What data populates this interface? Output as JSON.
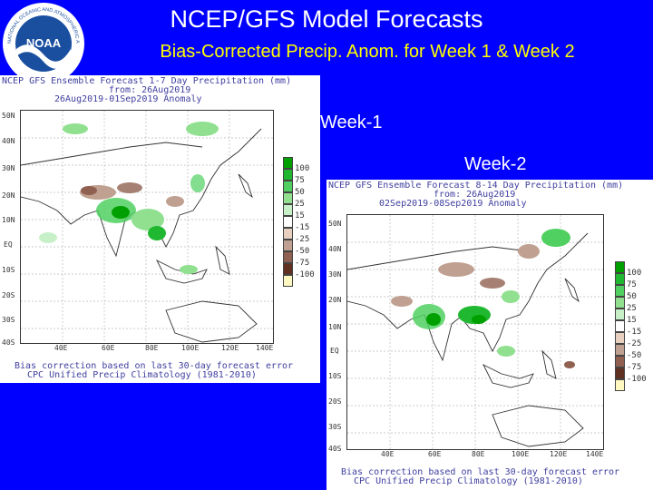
{
  "title": "NCEP/GFS Model Forecasts",
  "subtitle": "Bias-Corrected Precip. Anom. for Week 1 & Week 2",
  "logo_text": "NATIONAL OCEANIC AND ATMOSPHERIC ADMINISTRATION",
  "logo_abbrev": "NOAA",
  "week1_label": "Week-1",
  "week2_label": "Week-2",
  "panel1": {
    "header_1": "NCEP GFS Ensemble Forecast 1-7 Day Precipitation (mm)",
    "header_2": "from: 26Aug2019",
    "header_3": "26Aug2019-01Sep2019 Anomaly",
    "footer_1": "Bias correction based on last 30-day forecast error",
    "footer_2": "CPC Unified Precip Climatology (1981-2010)",
    "lat_labels": [
      "50N",
      "40N",
      "30N",
      "20N",
      "10N",
      "EQ",
      "10S",
      "20S",
      "30S",
      "40S"
    ],
    "lon_labels": [
      "40E",
      "60E",
      "80E",
      "100E",
      "120E",
      "140E"
    ]
  },
  "panel2": {
    "header_1": "NCEP GFS Ensemble Forecast 8-14 Day Precipitation (mm)",
    "header_2": "from: 26Aug2019",
    "header_3": "02Sep2019-08Sep2019 Anomaly",
    "footer_1": "Bias correction based on last 30-day forecast error",
    "footer_2": "CPC Unified Precip Climatology (1981-2010)",
    "lat_labels": [
      "50N",
      "40N",
      "30N",
      "20N",
      "10N",
      "EQ",
      "10S",
      "20S",
      "30S",
      "40S"
    ],
    "lon_labels": [
      "40E",
      "60E",
      "80E",
      "100E",
      "120E",
      "140E"
    ]
  },
  "legend": {
    "labels": [
      "100",
      "75",
      "50",
      "25",
      "15",
      "-15",
      "-25",
      "-50",
      "-75",
      "-100"
    ],
    "colors": [
      "#00a000",
      "#20b830",
      "#50d060",
      "#90e090",
      "#c8f0c8",
      "#ffffff",
      "#e8d0c0",
      "#c0a090",
      "#906050",
      "#603020",
      "#fff8c0"
    ]
  }
}
